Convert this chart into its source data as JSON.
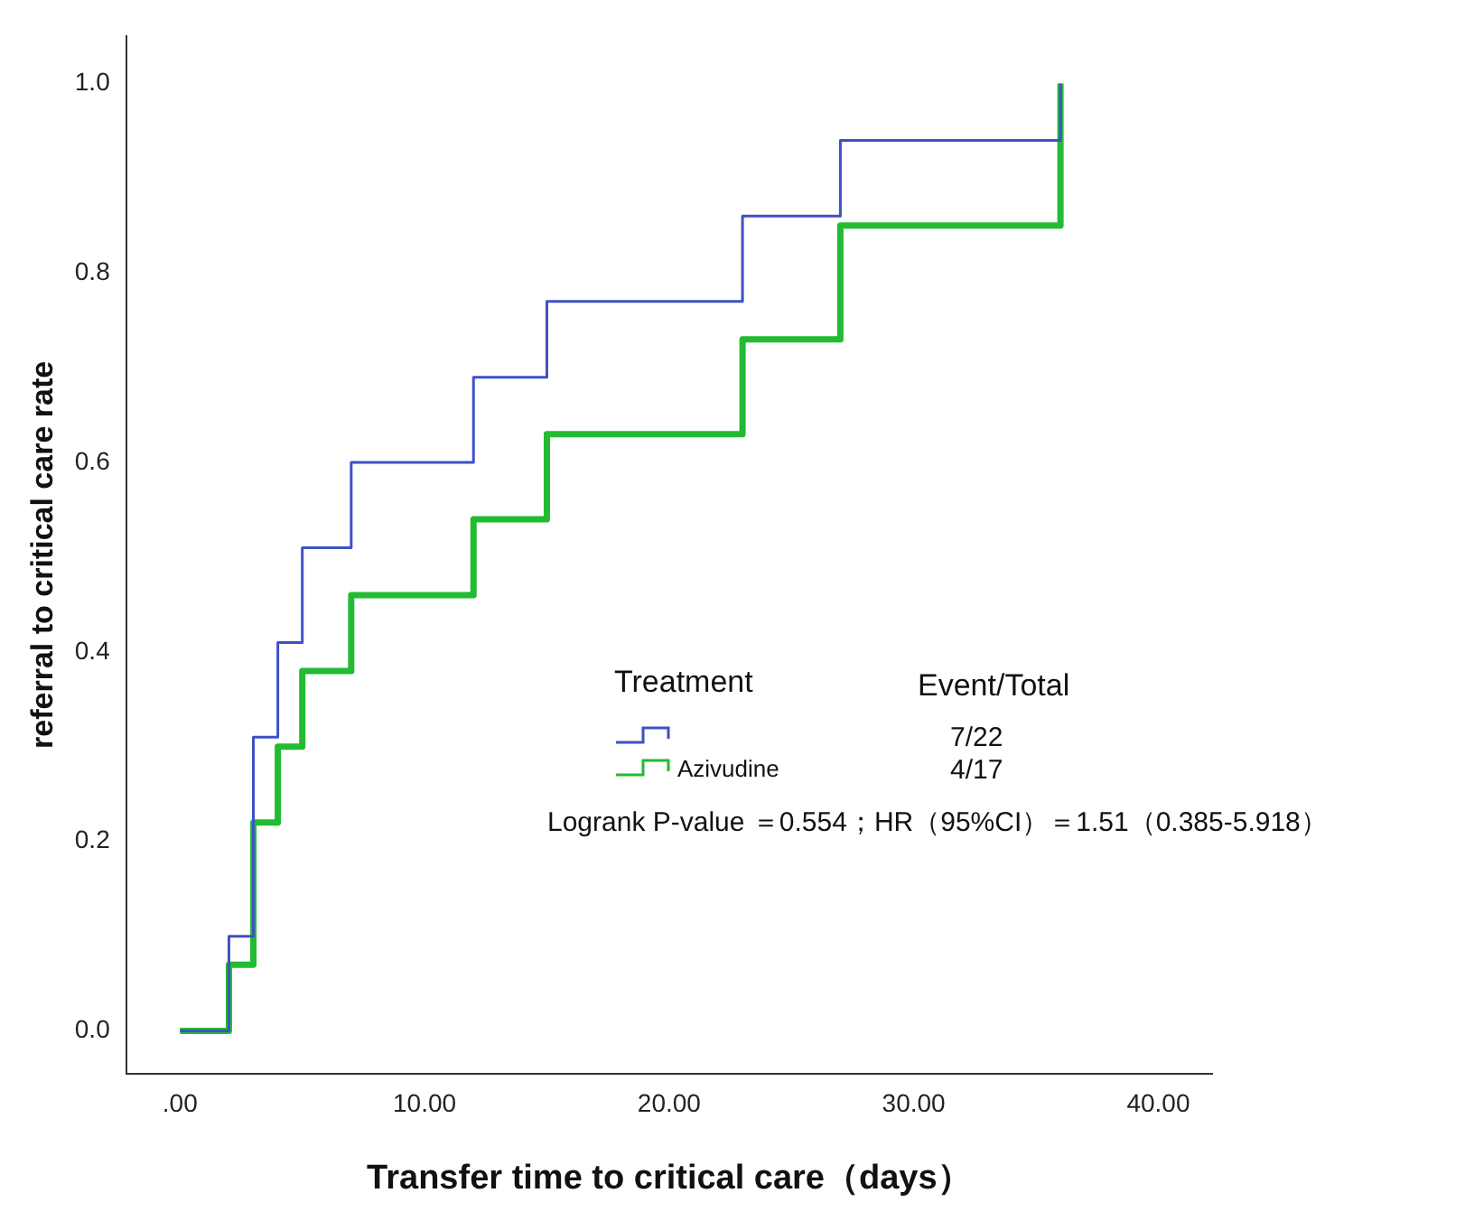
{
  "chart_data": {
    "type": "step",
    "xlabel": "Transfer time to critical care（days）",
    "ylabel": "referral to critical care rate",
    "legend_title": "Treatment",
    "legend": "center",
    "x": [
      0,
      2,
      3,
      4,
      5,
      7,
      12,
      15,
      23,
      27,
      36
    ],
    "series": [
      {
        "name": null,
        "color": "#3f51c4",
        "values": [
          0,
          0.1,
          0.31,
          0.41,
          0.51,
          0.6,
          0.69,
          0.77,
          0.86,
          0.94,
          1.0
        ]
      },
      {
        "name": "Azivudine",
        "color": "#22bb33",
        "values": [
          0,
          0.07,
          0.22,
          0.3,
          0.38,
          0.46,
          0.54,
          0.63,
          0.73,
          0.85,
          1.0
        ]
      }
    ],
    "xlim": [
      -2.2,
      42.2
    ],
    "xticks": [
      {
        "value": 0,
        "label": ".00"
      },
      {
        "value": 10,
        "label": "10.00"
      },
      {
        "value": 20,
        "label": "20.00"
      },
      {
        "value": 30,
        "label": "30.00"
      },
      {
        "value": 40,
        "label": "40.00"
      }
    ],
    "ylim": [
      -0.045,
      1.05
    ],
    "yticks": [
      {
        "value": 0,
        "label": "0.0"
      },
      {
        "value": 0.2,
        "label": "0.2"
      },
      {
        "value": 0.4,
        "label": "0.4"
      },
      {
        "value": 0.6,
        "label": "0.6"
      },
      {
        "value": 0.8,
        "label": "0.8"
      },
      {
        "value": 1,
        "label": "1.0"
      }
    ],
    "grid": false,
    "marker": "none",
    "line_style": "solid",
    "annotations": [
      "Event/Total",
      "7/22",
      "4/17",
      "Logrank P-value ＝0.554；HR（95%CI）＝1.51（0.385-5.918）"
    ]
  }
}
